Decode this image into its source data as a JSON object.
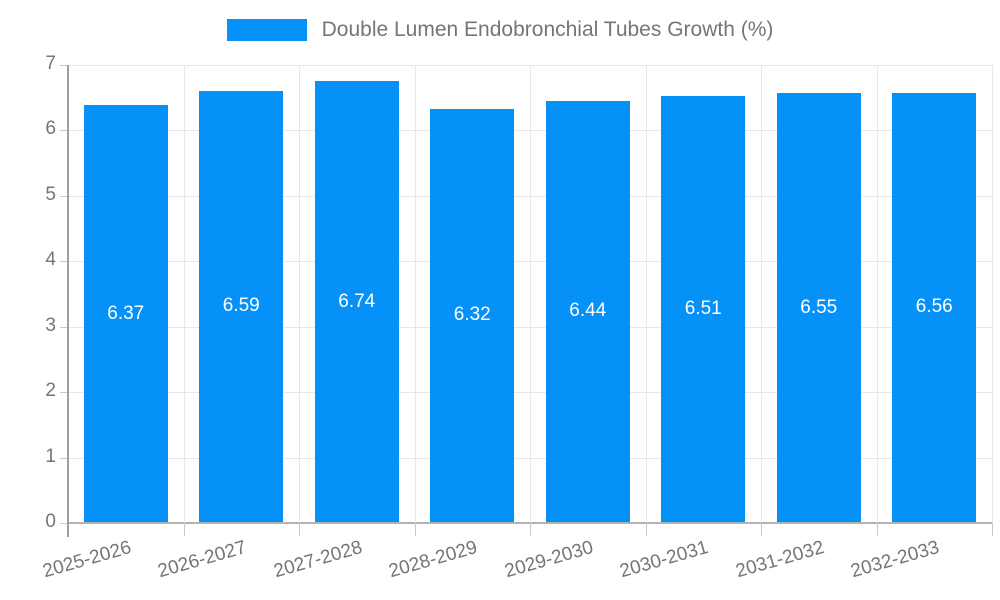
{
  "chart_data": {
    "type": "bar",
    "title": "Double Lumen Endobronchial Tubes Growth (%)",
    "categories": [
      "2025-2026",
      "2026-2027",
      "2027-2028",
      "2028-2029",
      "2029-2030",
      "2030-2031",
      "2031-2032",
      "2032-2033"
    ],
    "values": [
      6.37,
      6.59,
      6.74,
      6.32,
      6.44,
      6.51,
      6.55,
      6.56
    ],
    "value_labels": [
      "6.37",
      "6.59",
      "6.74",
      "6.32",
      "6.44",
      "6.51",
      "6.55",
      "6.56"
    ],
    "y_ticks": [
      "0",
      "1",
      "2",
      "3",
      "4",
      "5",
      "6",
      "7"
    ],
    "ylim": [
      0,
      7
    ],
    "xlabel": "",
    "ylabel": "",
    "grid": true,
    "legend_position": "top-center",
    "value_label_position": "inside-center",
    "colors": {
      "bar": "#0591f8",
      "bar_value_text": "#ffffff",
      "axis_text": "#757575",
      "gridline": "#e8e8e8",
      "axis_line": "#9e9e9e",
      "baseline": "#b3b3b3"
    }
  }
}
